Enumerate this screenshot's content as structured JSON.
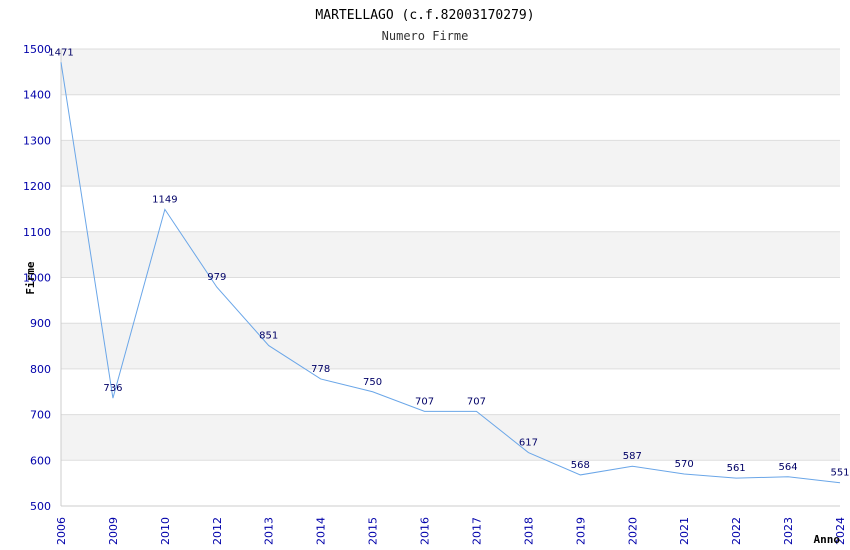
{
  "chart_data": {
    "type": "line",
    "title": "MARTELLAGO (c.f.82003170279)",
    "subtitle": "Numero Firme",
    "xlabel": "Anno",
    "ylabel": "Firme",
    "x": [
      "2006",
      "2009",
      "2010",
      "2012",
      "2013",
      "2014",
      "2015",
      "2016",
      "2017",
      "2018",
      "2019",
      "2020",
      "2021",
      "2022",
      "2023",
      "2024"
    ],
    "values": [
      1471,
      736,
      1149,
      979,
      851,
      778,
      750,
      707,
      707,
      617,
      568,
      587,
      570,
      561,
      564,
      551
    ],
    "ylim": [
      500,
      1500
    ],
    "yticks": [
      500,
      600,
      700,
      800,
      900,
      1000,
      1100,
      1200,
      1300,
      1400,
      1500
    ],
    "grid": true,
    "colors": {
      "line": "#6aa6e8",
      "tick_labels": "#0000aa",
      "data_labels": "#000066",
      "band": "#f3f3f3",
      "gridline": "#dddddd",
      "axis": "#cccccc"
    }
  }
}
